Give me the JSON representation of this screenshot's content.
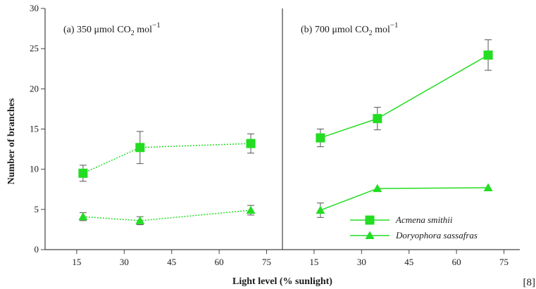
{
  "chart_data": {
    "type": "line",
    "ylabel": "Number of branches",
    "xlabel": "Light level (% sunlight)",
    "ylim": [
      0,
      30
    ],
    "yticks": [
      0,
      5,
      10,
      15,
      20,
      25,
      30
    ],
    "xlim": [
      5,
      80
    ],
    "xticks": [
      15,
      30,
      45,
      60,
      75
    ],
    "citation": "[8]",
    "legend": {
      "position": "bottom-right of panel (b)"
    },
    "colors": {
      "series": "#22dd22",
      "axis": "#444444"
    },
    "panels": [
      {
        "title_prefix": "(a)  350 μmol CO",
        "title_sub": "2",
        "title_unit": " mol",
        "title_sup": "−1",
        "line_style": "dotted",
        "series": [
          {
            "name": "Acmena smithii",
            "marker": "square",
            "x": [
              17,
              35,
              70
            ],
            "y": [
              9.5,
              12.7,
              13.2
            ],
            "err": [
              1.0,
              2.0,
              1.2
            ]
          },
          {
            "name": "Doryophora sassafras",
            "marker": "triangle",
            "x": [
              17,
              35,
              70
            ],
            "y": [
              4.1,
              3.6,
              4.9
            ],
            "err": [
              0.5,
              0.5,
              0.6
            ]
          }
        ]
      },
      {
        "title_prefix": "(b)  700 μmol CO",
        "title_sub": "2",
        "title_unit": " mol",
        "title_sup": "−1",
        "line_style": "solid",
        "series": [
          {
            "name": "Acmena smithii",
            "marker": "square",
            "x": [
              17,
              35,
              70
            ],
            "y": [
              13.9,
              16.3,
              24.2
            ],
            "err": [
              1.1,
              1.4,
              1.9
            ]
          },
          {
            "name": "Doryophora sassafras",
            "marker": "triangle",
            "x": [
              17,
              35,
              70
            ],
            "y": [
              4.9,
              7.6,
              7.7
            ],
            "err": [
              0.9,
              0,
              0
            ]
          }
        ]
      }
    ]
  }
}
